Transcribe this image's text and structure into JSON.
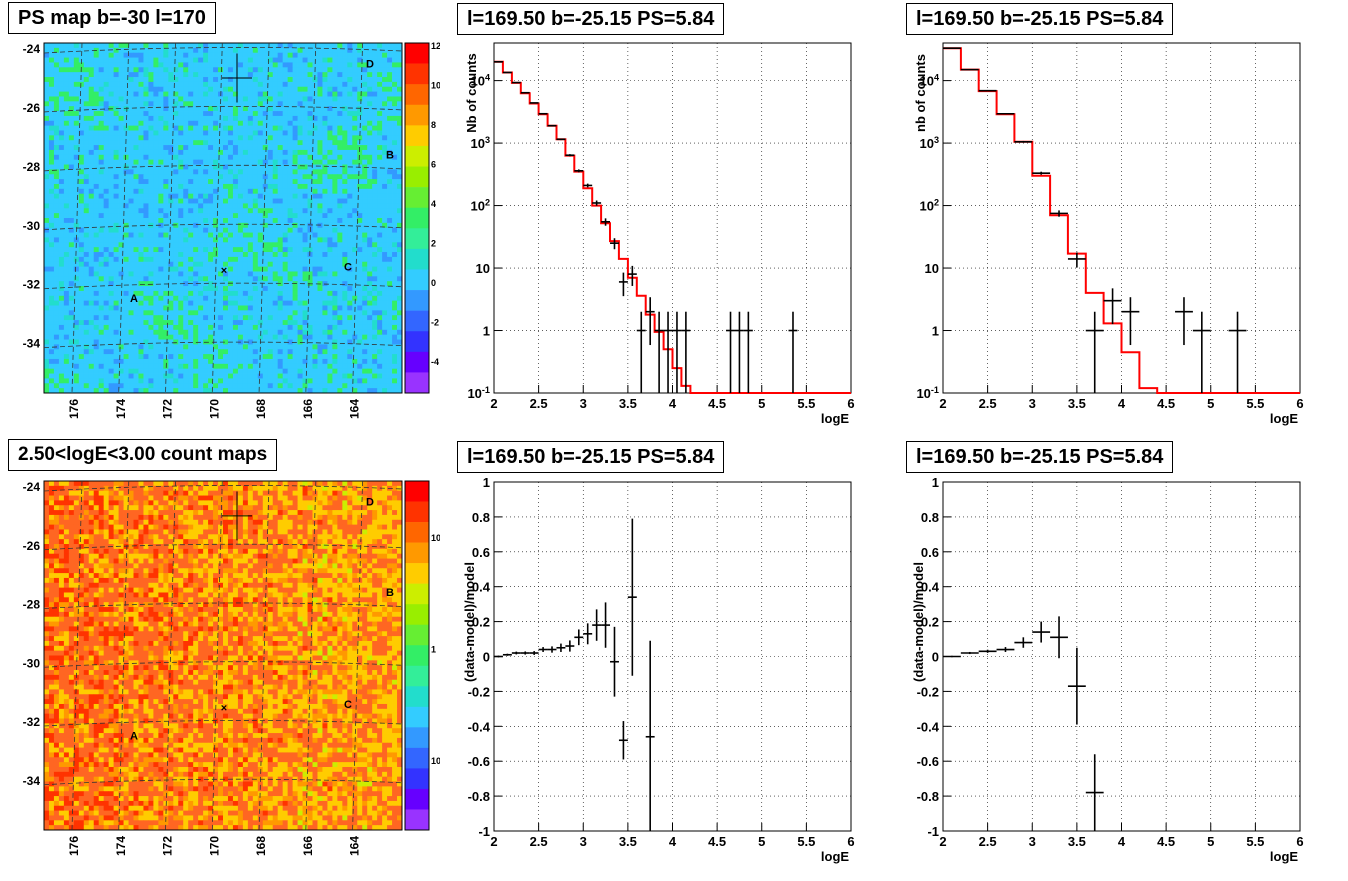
{
  "chart_data": [
    {
      "type": "heatmap",
      "title": "PS map b=-30 l=170",
      "y_ticks": [
        "-24",
        "-26",
        "-28",
        "-30",
        "-32",
        "-34"
      ],
      "x_ticks": [
        "176",
        "174",
        "172",
        "170",
        "168",
        "166",
        "164"
      ],
      "colorbar_ticks": [
        "12",
        "10",
        "8",
        "6",
        "4",
        "2",
        "0",
        "-2",
        "-4"
      ],
      "colorbar_range": [
        -5,
        12
      ],
      "markers": [
        "A",
        "B",
        "C",
        "D"
      ],
      "palette": "blue-cyan-green-yellow-red",
      "dominant_color": "#33ccff"
    },
    {
      "type": "line",
      "title": "l=169.50 b=-25.15 PS=5.84",
      "xlabel": "logE",
      "ylabel": "Nb of counts",
      "xlim": [
        2,
        6
      ],
      "ylim": [
        0.1,
        40000
      ],
      "yscale": "log",
      "x_ticks": [
        "2",
        "2.5",
        "3",
        "3.5",
        "4",
        "4.5",
        "5",
        "5.5",
        "6"
      ],
      "y_ticks": [
        "10^4",
        "10^3",
        "10^2",
        "10",
        "1",
        "10^-1"
      ],
      "grid": true,
      "model_color": "#ff0000",
      "data_color": "#000000",
      "series": [
        {
          "edges": [
            2,
            2.1,
            2.2,
            2.3,
            2.4,
            2.5,
            2.6,
            2.7,
            2.8,
            2.9,
            3,
            3.1,
            3.2,
            3.3,
            3.4,
            3.5,
            3.6,
            3.7,
            3.8,
            3.9,
            4,
            4.1,
            4.2,
            6
          ],
          "values": [
            20000,
            13500,
            9200,
            6300,
            4300,
            2900,
            1900,
            1150,
            630,
            350,
            190,
            100,
            52,
            27,
            14,
            7,
            3.6,
            1.8,
            0.95,
            0.5,
            0.25,
            0.13,
            0.1
          ]
        },
        {
          "points": [
            [
              2.05,
              20000
            ],
            [
              2.15,
              13500
            ],
            [
              2.25,
              9300
            ],
            [
              2.35,
              6400
            ],
            [
              2.45,
              4400
            ],
            [
              2.55,
              2950
            ],
            [
              2.65,
              1900
            ],
            [
              2.75,
              1150
            ],
            [
              2.85,
              640
            ],
            [
              2.95,
              360
            ],
            [
              3.05,
              210
            ],
            [
              3.15,
              110
            ],
            [
              3.25,
              55
            ],
            [
              3.35,
              25
            ],
            [
              3.45,
              6
            ],
            [
              3.55,
              8
            ],
            [
              3.65,
              1
            ],
            [
              3.75,
              2
            ],
            [
              3.85,
              1
            ],
            [
              3.95,
              1
            ],
            [
              4.05,
              1
            ],
            [
              4.15,
              1
            ],
            [
              4.65,
              1
            ],
            [
              4.75,
              1
            ],
            [
              4.85,
              1
            ],
            [
              5.35,
              1
            ]
          ]
        }
      ]
    },
    {
      "type": "line",
      "title": "l=169.50 b=-25.15 PS=5.84",
      "xlabel": "logE",
      "ylabel": "nb of counts",
      "xlim": [
        2,
        6
      ],
      "ylim": [
        0.1,
        40000
      ],
      "yscale": "log",
      "x_ticks": [
        "2",
        "2.5",
        "3",
        "3.5",
        "4",
        "4.5",
        "5",
        "5.5",
        "6"
      ],
      "y_ticks": [
        "10^4",
        "10^3",
        "10^2",
        "10",
        "1",
        "10^-1"
      ],
      "grid": true,
      "model_color": "#ff0000",
      "data_color": "#000000",
      "series": [
        {
          "edges": [
            2,
            2.2,
            2.4,
            2.6,
            2.8,
            3,
            3.2,
            3.4,
            3.6,
            3.8,
            4,
            4.2,
            4.4,
            6
          ],
          "values": [
            33000,
            15000,
            6800,
            2900,
            1050,
            300,
            70,
            17,
            4,
            1.3,
            0.45,
            0.12,
            0.1
          ]
        },
        {
          "points": [
            [
              2.1,
              33000
            ],
            [
              2.3,
              15000
            ],
            [
              2.5,
              6900
            ],
            [
              2.7,
              2950
            ],
            [
              2.9,
              1050
            ],
            [
              3.1,
              330
            ],
            [
              3.3,
              75
            ],
            [
              3.5,
              14
            ],
            [
              3.7,
              1
            ],
            [
              3.9,
              3
            ],
            [
              4.1,
              2
            ],
            [
              4.7,
              2
            ],
            [
              4.9,
              1
            ],
            [
              5.3,
              1
            ]
          ]
        }
      ]
    },
    {
      "type": "heatmap",
      "title": "2.50<logE<3.00 count maps",
      "y_ticks": [
        "-24",
        "-26",
        "-28",
        "-30",
        "-32",
        "-34"
      ],
      "x_ticks": [
        "176",
        "174",
        "172",
        "170",
        "168",
        "166",
        "164"
      ],
      "colorbar_ticks": [
        "10",
        "1",
        "10^-1"
      ],
      "colorbar_scale": "log",
      "markers": [
        "A",
        "B",
        "C",
        "D"
      ],
      "palette": "blue-cyan-green-yellow-red",
      "dominant_color": "#ff6622"
    },
    {
      "type": "scatter",
      "title": "l=169.50 b=-25.15 PS=5.84",
      "xlabel": "logE",
      "ylabel": "(data-model)/model",
      "xlim": [
        2,
        6
      ],
      "ylim": [
        -1,
        1
      ],
      "x_ticks": [
        "2",
        "2.5",
        "3",
        "3.5",
        "4",
        "4.5",
        "5",
        "5.5",
        "6"
      ],
      "y_ticks": [
        "1",
        "0.8",
        "0.6",
        "0.4",
        "0.2",
        "0",
        "-0.2",
        "-0.4",
        "-0.6",
        "-0.8",
        "-1"
      ],
      "grid": true,
      "points": [
        [
          2.05,
          0.0,
          0.005
        ],
        [
          2.15,
          0.01,
          0.006
        ],
        [
          2.25,
          0.02,
          0.008
        ],
        [
          2.35,
          0.02,
          0.009
        ],
        [
          2.45,
          0.02,
          0.011
        ],
        [
          2.55,
          0.04,
          0.014
        ],
        [
          2.65,
          0.04,
          0.018
        ],
        [
          2.75,
          0.05,
          0.024
        ],
        [
          2.85,
          0.06,
          0.032
        ],
        [
          2.95,
          0.11,
          0.045
        ],
        [
          3.05,
          0.13,
          0.06
        ],
        [
          3.15,
          0.18,
          0.09
        ],
        [
          3.25,
          0.18,
          0.13
        ],
        [
          3.35,
          -0.03,
          0.2
        ],
        [
          3.45,
          -0.48,
          0.11
        ],
        [
          3.55,
          0.34,
          0.45
        ],
        [
          3.75,
          -0.46,
          0.55
        ]
      ]
    },
    {
      "type": "scatter",
      "title": "l=169.50 b=-25.15 PS=5.84",
      "xlabel": "logE",
      "ylabel": "(data-model)/model",
      "xlim": [
        2,
        6
      ],
      "ylim": [
        -1,
        1
      ],
      "x_ticks": [
        "2",
        "2.5",
        "3",
        "3.5",
        "4",
        "4.5",
        "5",
        "5.5",
        "6"
      ],
      "y_ticks": [
        "1",
        "0.8",
        "0.6",
        "0.4",
        "0.2",
        "0",
        "-0.2",
        "-0.4",
        "-0.6",
        "-0.8",
        "-1"
      ],
      "grid": true,
      "points": [
        [
          2.1,
          0.0,
          0.004
        ],
        [
          2.3,
          0.02,
          0.006
        ],
        [
          2.5,
          0.03,
          0.009
        ],
        [
          2.7,
          0.04,
          0.014
        ],
        [
          2.9,
          0.08,
          0.03
        ],
        [
          3.1,
          0.14,
          0.06
        ],
        [
          3.3,
          0.11,
          0.12
        ],
        [
          3.5,
          -0.17,
          0.22
        ],
        [
          3.7,
          -0.78,
          0.22
        ]
      ]
    }
  ]
}
